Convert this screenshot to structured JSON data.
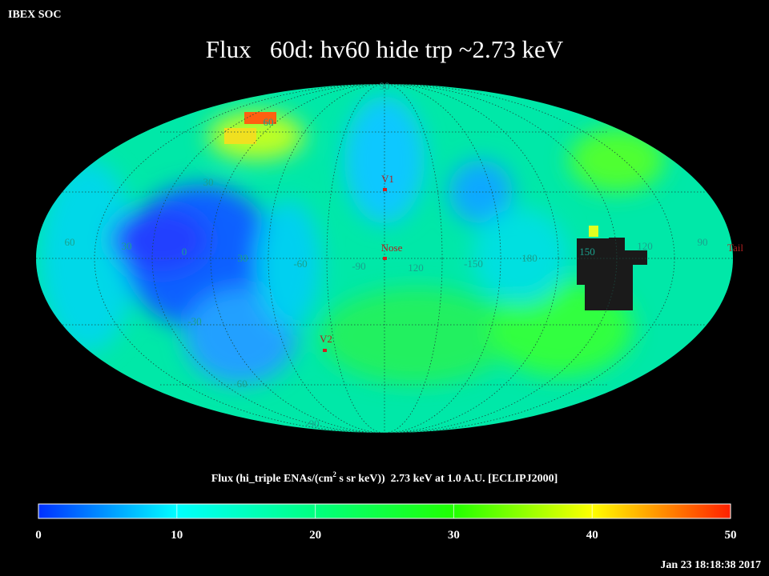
{
  "header": {
    "app": "IBEX SOC",
    "title": "Flux   60d: hv60 hide trp ~2.73 keV",
    "timestamp": "Jan 23 18:18:38 2017"
  },
  "map": {
    "latitude_labels": [
      "90",
      "60",
      "30",
      "-30",
      "-60",
      "-90"
    ],
    "longitude_labels": [
      "60",
      "30",
      "0",
      "30",
      "-60",
      "-90",
      "120",
      "-150",
      "180",
      "150",
      "120",
      "90"
    ],
    "markers": [
      "V1",
      "Nose",
      "V2",
      "Tail"
    ]
  },
  "colorbar": {
    "label_before": "Flux (hi_triple ENAs/(cm",
    "label_sup": "2",
    "label_after": " s sr keV))  2.73 keV at 1.0 A.U. [ECLIPJ2000]",
    "lim": [
      0,
      50
    ],
    "ticks": [
      0,
      10,
      20,
      30,
      40,
      50
    ]
  }
}
